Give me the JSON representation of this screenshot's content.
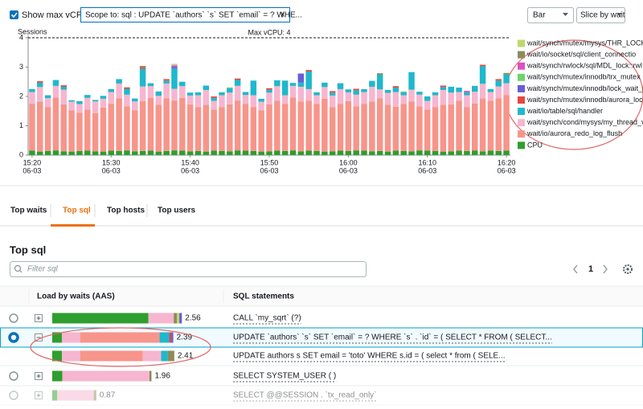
{
  "controls": {
    "show_max_vcpu_label": "Show max vCPU",
    "scope_label": "Scope to: sql : UPDATE `authors` `s` SET `email` = ? WHE...",
    "scope_close": "x",
    "view": "Bar",
    "slice": "Slice by wait"
  },
  "chart_data": {
    "type": "bar",
    "stacked": true,
    "y_label": "Sessions",
    "max_vcpu": 4,
    "max_vcpu_label": "Max vCPU: 4",
    "ylim": [
      0,
      4
    ],
    "yticks": [
      0,
      1,
      2,
      3,
      4
    ],
    "grid": false,
    "legend": "right",
    "categories": [
      {
        "time": "15:20",
        "date": "06-03"
      },
      null,
      null,
      null,
      null,
      null,
      null,
      null,
      null,
      null,
      {
        "time": "15:30",
        "date": "06-03"
      },
      null,
      null,
      null,
      null,
      null,
      null,
      null,
      null,
      null,
      {
        "time": "15:40",
        "date": "06-03"
      },
      null,
      null,
      null,
      null,
      null,
      null,
      null,
      null,
      null,
      {
        "time": "15:50",
        "date": "06-03"
      },
      null,
      null,
      null,
      null,
      null,
      null,
      null,
      null,
      null,
      {
        "time": "16:00",
        "date": "06-03"
      },
      null,
      null,
      null,
      null,
      null,
      null,
      null,
      null,
      null,
      {
        "time": "16:10",
        "date": "06-03"
      },
      null,
      null,
      null,
      null,
      null,
      null,
      null,
      null,
      null,
      {
        "time": "16:20",
        "date": "06-03"
      }
    ],
    "series": [
      {
        "name": "wait/synch/mutex/mysys/THR_LOCK::mu",
        "color": "#bcd96c",
        "values": [
          0,
          0,
          0,
          0,
          0,
          0,
          0,
          0,
          0,
          0,
          0,
          0,
          0,
          0,
          0,
          0,
          0,
          0,
          0.05,
          0,
          0,
          0,
          0,
          0,
          0,
          0,
          0,
          0,
          0,
          0,
          0,
          0,
          0,
          0,
          0,
          0,
          0,
          0,
          0,
          0,
          0,
          0,
          0,
          0,
          0,
          0,
          0,
          0,
          0,
          0,
          0,
          0,
          0,
          0,
          0,
          0,
          0,
          0,
          0,
          0,
          0
        ]
      },
      {
        "name": "wait/io/socket/sql/client_connectio",
        "color": "#8c8c5a",
        "values": [
          0,
          0,
          0,
          0,
          0,
          0,
          0,
          0,
          0,
          0,
          0,
          0,
          0,
          0,
          0.05,
          0,
          0,
          0,
          0,
          0,
          0,
          0,
          0,
          0,
          0,
          0,
          0,
          0,
          0,
          0,
          0,
          0,
          0,
          0,
          0,
          0,
          0,
          0,
          0,
          0,
          0,
          0,
          0,
          0,
          0.05,
          0,
          0,
          0,
          0,
          0,
          0,
          0,
          0,
          0,
          0,
          0,
          0,
          0,
          0,
          0,
          0.05
        ]
      },
      {
        "name": "wait/synch/rwlock/sql/MDL_lock::rwl",
        "color": "#e04fc1",
        "values": [
          0,
          0,
          0,
          0,
          0,
          0,
          0,
          0,
          0,
          0,
          0,
          0,
          0,
          0,
          0,
          0,
          0,
          0,
          0.05,
          0,
          0,
          0,
          0,
          0,
          0,
          0,
          0,
          0,
          0,
          0,
          0,
          0,
          0,
          0,
          0,
          0,
          0,
          0,
          0,
          0,
          0,
          0,
          0,
          0,
          0,
          0,
          0,
          0,
          0,
          0,
          0,
          0,
          0,
          0,
          0,
          0.05,
          0,
          0,
          0,
          0,
          0
        ]
      },
      {
        "name": "wait/synch/mutex/innodb/trx_mutex",
        "color": "#6fd36f",
        "values": [
          0,
          0,
          0,
          0,
          0,
          0,
          0,
          0,
          0,
          0,
          0,
          0,
          0,
          0,
          0,
          0,
          0,
          0,
          0,
          0,
          0,
          0,
          0,
          0,
          0,
          0.03,
          0,
          0,
          0,
          0,
          0,
          0,
          0,
          0,
          0,
          0,
          0,
          0,
          0,
          0,
          0,
          0,
          0,
          0,
          0,
          0,
          0,
          0.03,
          0,
          0,
          0,
          0,
          0,
          0,
          0,
          0,
          0,
          0,
          0,
          0,
          0
        ]
      },
      {
        "name": "wait/synch/mutex/innodb/lock_wait_m",
        "color": "#6b5bd6",
        "values": [
          0,
          0,
          0,
          0,
          0,
          0,
          0,
          0,
          0,
          0,
          0,
          0,
          0,
          0,
          0,
          0,
          0,
          0,
          0.05,
          0,
          0,
          0,
          0,
          0,
          0,
          0,
          0,
          0,
          0,
          0,
          0,
          0,
          0,
          0,
          0.3,
          0,
          0,
          0,
          0,
          0,
          0,
          0,
          0,
          0,
          0,
          0,
          0,
          0,
          0,
          0,
          0,
          0,
          0,
          0,
          0,
          0,
          0,
          0,
          0,
          0,
          0
        ]
      },
      {
        "name": "wait/synch/mutex/innodb/aurora_lock",
        "color": "#e8473f",
        "values": [
          0,
          0.05,
          0,
          0,
          0.05,
          0,
          0,
          0,
          0,
          0,
          0,
          0,
          0.05,
          0,
          0.05,
          0,
          0,
          0.05,
          0,
          0,
          0,
          0,
          0,
          0.05,
          0,
          0,
          0.05,
          0,
          0,
          0,
          0.05,
          0,
          0,
          0,
          0,
          0.05,
          0,
          0,
          0.05,
          0,
          0,
          0.05,
          0,
          0,
          0,
          0,
          0.05,
          0,
          0,
          0,
          0,
          0,
          0.05,
          0,
          0,
          0,
          0,
          0.05,
          0,
          0.05,
          0
        ]
      },
      {
        "name": "wait/io/table/sql/handler",
        "color": "#1fb8cc",
        "values": [
          0.1,
          0.15,
          0.1,
          0.2,
          0.1,
          0.05,
          0.1,
          0.1,
          0.05,
          0.1,
          0.1,
          0.15,
          0.2,
          0.1,
          0.6,
          0.1,
          0.15,
          0.1,
          0.7,
          0.15,
          0.1,
          0.1,
          0.15,
          0.1,
          0.1,
          0.15,
          0.2,
          0.1,
          0.5,
          0.1,
          0.1,
          0.2,
          0.5,
          0.1,
          0.15,
          0.6,
          0.1,
          0.15,
          0.1,
          0.2,
          0.1,
          0.15,
          0.1,
          0.2,
          0.5,
          0.1,
          0.15,
          0.1,
          0.6,
          0.1,
          0.15,
          0.1,
          0.1,
          0.2,
          0.15,
          0.1,
          0.2,
          0.6,
          0.1,
          0.2,
          0.3
        ]
      },
      {
        "name": "wait/synch/cond/mysys/my_thread_var",
        "color": "#f6b6cf",
        "values": [
          0.4,
          0.5,
          0.3,
          0.4,
          0.5,
          0.3,
          0.3,
          0.4,
          0.4,
          0.3,
          0.4,
          0.5,
          0.4,
          0.3,
          0.5,
          0.4,
          0.3,
          0.5,
          0.4,
          0.4,
          0.3,
          0.4,
          0.5,
          0.3,
          0.4,
          0.4,
          0.5,
          0.3,
          0.4,
          0.3,
          0.4,
          0.5,
          0.3,
          0.4,
          0.5,
          0.4,
          0.3,
          0.4,
          0.4,
          0.5,
          0.3,
          0.4,
          0.4,
          0.5,
          0.3,
          0.4,
          0.5,
          0.3,
          0.4,
          0.4,
          0.3,
          0.4,
          0.5,
          0.4,
          0.3,
          0.4,
          0.4,
          0.5,
          0.3,
          0.4,
          0.4
        ]
      },
      {
        "name": "wait/io/aurora_redo_log_flush",
        "color": "#f7958b",
        "values": [
          1.6,
          1.7,
          1.5,
          1.8,
          1.6,
          1.4,
          1.3,
          1.4,
          1.3,
          1.5,
          1.6,
          1.8,
          1.5,
          1.4,
          1.7,
          1.8,
          1.6,
          1.8,
          1.7,
          1.8,
          1.6,
          1.5,
          1.6,
          1.4,
          1.5,
          1.6,
          1.7,
          1.6,
          1.5,
          1.4,
          1.6,
          1.7,
          1.6,
          1.8,
          1.7,
          1.7,
          1.6,
          1.8,
          1.5,
          1.6,
          1.7,
          1.5,
          1.6,
          1.7,
          1.8,
          1.6,
          1.5,
          1.6,
          1.7,
          1.5,
          1.4,
          1.5,
          1.6,
          1.6,
          1.7,
          1.5,
          1.6,
          1.8,
          1.7,
          1.8,
          1.9
        ]
      },
      {
        "name": "CPU",
        "color": "#2e9e2e",
        "values": [
          0.15,
          0.12,
          0.14,
          0.16,
          0.13,
          0.12,
          0.14,
          0.15,
          0.13,
          0.12,
          0.15,
          0.14,
          0.16,
          0.13,
          0.14,
          0.15,
          0.12,
          0.14,
          0.16,
          0.15,
          0.13,
          0.14,
          0.12,
          0.15,
          0.14,
          0.13,
          0.16,
          0.15,
          0.14,
          0.12,
          0.13,
          0.15,
          0.14,
          0.16,
          0.13,
          0.15,
          0.14,
          0.12,
          0.13,
          0.15,
          0.14,
          0.16,
          0.15,
          0.13,
          0.14,
          0.12,
          0.15,
          0.14,
          0.13,
          0.16,
          0.15,
          0.14,
          0.12,
          0.13,
          0.15,
          0.14,
          0.16,
          0.13,
          0.15,
          0.14,
          0.15
        ]
      }
    ]
  },
  "tabs": [
    "Top waits",
    "Top sql",
    "Top hosts",
    "Top users"
  ],
  "active_tab": 1,
  "table": {
    "title": "Top sql",
    "filter_placeholder": "Filter sql",
    "page": 1,
    "columns": [
      "Load by waits (AAS)",
      "SQL statements"
    ],
    "rows": [
      {
        "load": 2.56,
        "expand": "+",
        "selected": false,
        "child": false,
        "faded": false,
        "sql": "CALL `my_sqrt` (?)",
        "segments": [
          {
            "value": 1.9,
            "color": "#2e9e2e"
          },
          {
            "value": 0.5,
            "color": "#f6b6cf"
          },
          {
            "value": 0.06,
            "color": "#8c8c5a"
          },
          {
            "value": 0.05,
            "color": "#bcd96c"
          },
          {
            "value": 0.05,
            "color": "#6b5bd6"
          }
        ]
      },
      {
        "load": 2.39,
        "expand": "−",
        "selected": true,
        "child": false,
        "faded": false,
        "sql": "UPDATE `authors` `s` SET `email` = ? WHERE `s` . `id` = ( SELECT * FROM ( SELECT...",
        "segments": [
          {
            "value": 0.19,
            "color": "#2e9e2e"
          },
          {
            "value": 0.36,
            "color": "#f6b6cf"
          },
          {
            "value": 1.57,
            "color": "#f7958b"
          },
          {
            "value": 0.19,
            "color": "#1fb8cc"
          },
          {
            "value": 0.04,
            "color": "#e8473f"
          },
          {
            "value": 0.04,
            "color": "#6b5bd6"
          }
        ]
      },
      {
        "load": 2.41,
        "expand": null,
        "selected": false,
        "child": true,
        "faded": false,
        "sql": "UPDATE authors s SET email = 'toto' WHERE s.id = ( select * from ( SELE...",
        "segments": [
          {
            "value": 0.19,
            "color": "#2e9e2e"
          },
          {
            "value": 0.36,
            "color": "#f6b6cf"
          },
          {
            "value": 1.24,
            "color": "#f7958b"
          },
          {
            "value": 0.36,
            "color": "#f6b6cf"
          },
          {
            "value": 0.13,
            "color": "#1fb8cc"
          },
          {
            "value": 0.13,
            "color": "#8c8c5a"
          }
        ]
      },
      {
        "load": 1.96,
        "expand": "+",
        "selected": false,
        "child": false,
        "faded": false,
        "sql": "SELECT SYSTEM_USER ( )",
        "segments": [
          {
            "value": 0.2,
            "color": "#2e9e2e"
          },
          {
            "value": 1.72,
            "color": "#f6b6cf"
          },
          {
            "value": 0.04,
            "color": "#8c8c5a"
          }
        ]
      },
      {
        "load": 0.87,
        "expand": "+",
        "selected": false,
        "child": false,
        "faded": true,
        "sql": "SELECT @@SESSION . `tx_read_only`",
        "segments": [
          {
            "value": 0.1,
            "color": "#2e9e2e"
          },
          {
            "value": 0.72,
            "color": "#f6b6cf"
          },
          {
            "value": 0.05,
            "color": "#8c8c5a"
          }
        ]
      }
    ]
  }
}
